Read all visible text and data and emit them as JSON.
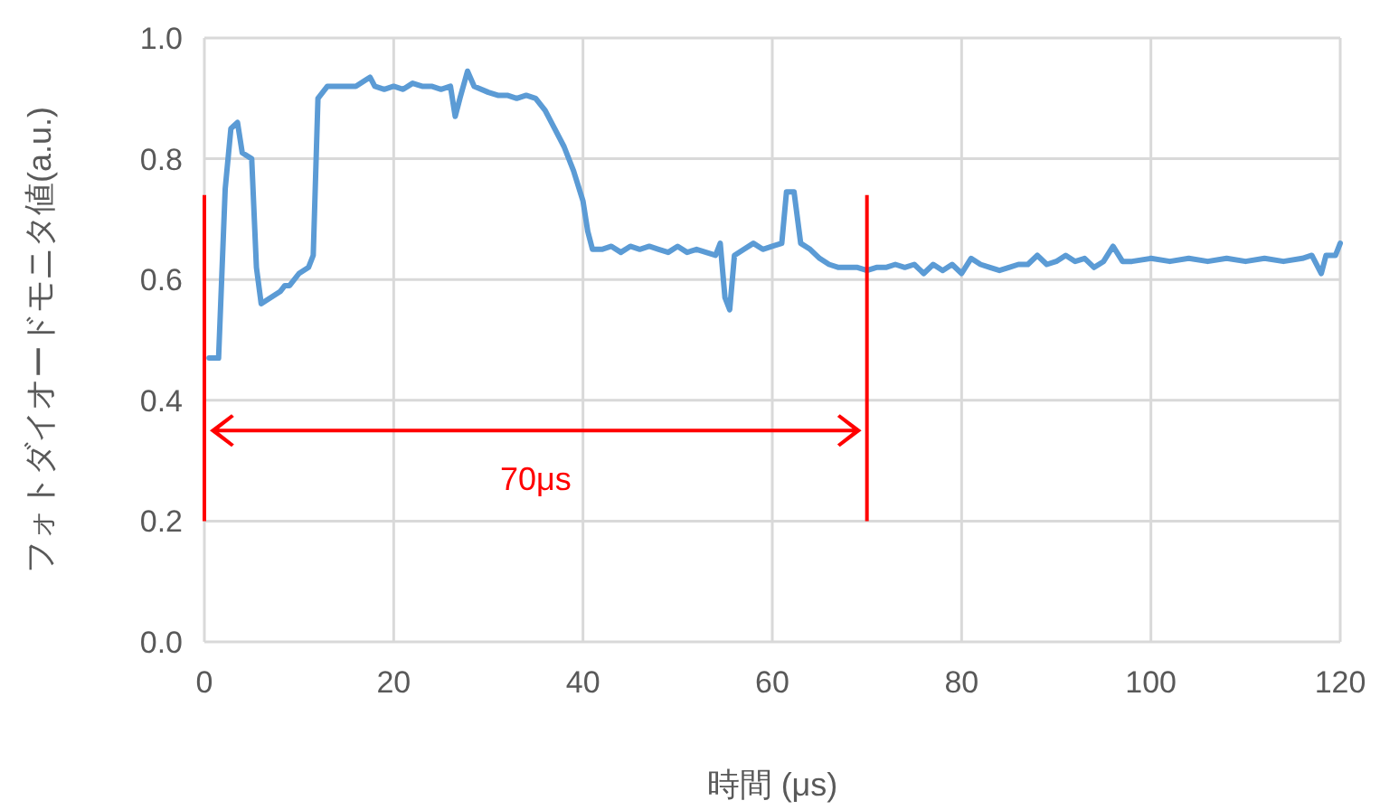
{
  "chart_data": {
    "type": "line",
    "xlabel": "時間 (μs)",
    "ylabel": "フォトダイオードモニタ値(a.u.)",
    "xlim": [
      0,
      120
    ],
    "xticks": [
      0,
      20,
      40,
      60,
      80,
      100,
      120
    ],
    "ylim": [
      0,
      1
    ],
    "yticks": [
      {
        "value": 0,
        "label": "0.0"
      },
      0.2,
      0.4,
      0.6,
      0.8,
      {
        "value": 1,
        "label": "1.0"
      }
    ],
    "grid": true,
    "line_style": "solid",
    "marker": "none",
    "annotations": [
      "70μs"
    ],
    "series": [
      {
        "color": "#5b9bd5",
        "x": [
          0.5,
          1.5,
          2.2,
          2.8,
          3.5,
          4,
          5,
          5.5,
          6,
          7,
          8,
          8.5,
          9,
          10,
          11,
          11.5,
          12,
          13,
          15,
          16,
          17,
          17.5,
          18,
          19,
          20,
          21,
          22,
          23,
          24,
          25,
          26,
          26.5,
          27,
          27.8,
          28.5,
          30,
          31,
          32,
          33,
          34,
          35,
          36,
          37,
          38,
          39,
          40,
          40.5,
          41,
          42,
          43,
          44,
          45,
          46,
          47,
          48,
          49,
          50,
          51,
          52,
          53,
          54,
          54.5,
          55,
          55.5,
          56,
          57,
          58,
          59,
          60,
          61,
          61.5,
          62.3,
          63,
          64,
          65,
          66,
          67,
          68,
          69,
          70,
          71,
          72,
          73,
          74,
          75,
          76,
          77,
          78,
          79,
          80,
          81,
          82,
          83,
          84,
          85,
          86,
          87,
          88,
          89,
          90,
          91,
          92,
          93,
          94,
          95,
          96,
          97,
          98,
          100,
          102,
          104,
          106,
          108,
          110,
          112,
          114,
          116,
          117,
          118,
          118.5,
          119.5,
          120
        ],
        "values": [
          0.47,
          0.47,
          0.75,
          0.85,
          0.86,
          0.81,
          0.8,
          0.62,
          0.56,
          0.57,
          0.58,
          0.59,
          0.59,
          0.61,
          0.62,
          0.64,
          0.9,
          0.92,
          0.92,
          0.92,
          0.93,
          0.935,
          0.92,
          0.915,
          0.92,
          0.915,
          0.925,
          0.92,
          0.92,
          0.915,
          0.92,
          0.87,
          0.9,
          0.945,
          0.92,
          0.91,
          0.905,
          0.905,
          0.9,
          0.905,
          0.9,
          0.88,
          0.85,
          0.82,
          0.78,
          0.73,
          0.68,
          0.65,
          0.65,
          0.655,
          0.645,
          0.655,
          0.65,
          0.655,
          0.65,
          0.645,
          0.655,
          0.645,
          0.65,
          0.645,
          0.64,
          0.66,
          0.57,
          0.55,
          0.64,
          0.65,
          0.66,
          0.65,
          0.655,
          0.66,
          0.745,
          0.745,
          0.66,
          0.65,
          0.635,
          0.625,
          0.62,
          0.62,
          0.62,
          0.615,
          0.62,
          0.62,
          0.625,
          0.62,
          0.625,
          0.61,
          0.625,
          0.615,
          0.625,
          0.61,
          0.635,
          0.625,
          0.62,
          0.615,
          0.62,
          0.625,
          0.625,
          0.64,
          0.625,
          0.63,
          0.64,
          0.63,
          0.635,
          0.62,
          0.63,
          0.655,
          0.63,
          0.63,
          0.635,
          0.63,
          0.635,
          0.63,
          0.635,
          0.63,
          0.635,
          0.63,
          0.635,
          0.64,
          0.61,
          0.64,
          0.64,
          0.66
        ]
      }
    ]
  }
}
